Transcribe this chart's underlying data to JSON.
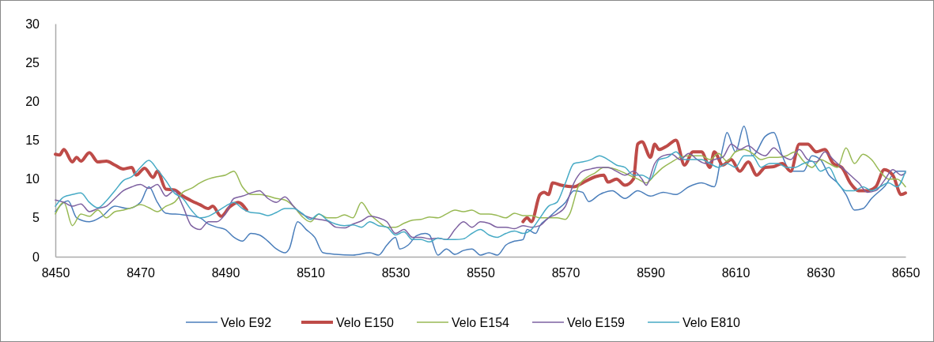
{
  "chart_data": {
    "type": "line",
    "xlim": [
      8450,
      8650
    ],
    "xticks": [
      8450,
      8470,
      8490,
      8510,
      8530,
      8550,
      8570,
      8590,
      8610,
      8630,
      8650
    ],
    "ylim": [
      0,
      30
    ],
    "yticks": [
      0,
      5,
      10,
      15,
      20,
      25,
      30
    ],
    "grid": false,
    "legend": "bottom",
    "line_style": "solid",
    "marker": "none",
    "series": [
      {
        "name": "Velo E92",
        "color": "#4a7ebb",
        "x": [
          8450,
          8453,
          8455,
          8458,
          8461,
          8464,
          8467,
          8470,
          8472,
          8474,
          8476,
          8480,
          8484,
          8486,
          8488,
          8490,
          8492,
          8494,
          8496,
          8498,
          8500,
          8502,
          8504,
          8505,
          8507,
          8509,
          8511,
          8513,
          8516,
          8520,
          8524,
          8526,
          8528,
          8530,
          8531,
          8533,
          8535,
          8537,
          8538,
          8540,
          8542,
          8544,
          8546,
          8548,
          8550,
          8552,
          8554,
          8556,
          8558,
          8560,
          8561,
          8563,
          8564,
          8566,
          8568,
          8570,
          8572,
          8574,
          8575.5,
          8578,
          8581,
          8584,
          8587,
          8590,
          8593,
          8596,
          8599,
          8602,
          8605,
          8607,
          8608,
          8610,
          8612,
          8614,
          8617,
          8619,
          8621,
          8623,
          8626,
          8628,
          8630,
          8632,
          8634,
          8636,
          8638,
          8640,
          8642,
          8645,
          8648,
          8650
        ],
        "values": [
          5.8,
          7.2,
          5.0,
          4.5,
          5.2,
          6.5,
          6.2,
          7.0,
          9.0,
          7.0,
          5.6,
          5.4,
          5.0,
          4.2,
          3.8,
          3.5,
          2.5,
          2.0,
          3.0,
          2.8,
          2.0,
          1.0,
          0.5,
          1.0,
          4.5,
          3.5,
          2.5,
          0.5,
          0.3,
          0.2,
          0.5,
          0.2,
          1.5,
          2.5,
          1.0,
          1.5,
          2.7,
          3.0,
          2.8,
          0.2,
          1.0,
          0.3,
          0.8,
          1.0,
          0.2,
          0.5,
          0.2,
          1.5,
          2.0,
          2.2,
          3.5,
          3.0,
          4.0,
          5.0,
          6.0,
          7.0,
          8.5,
          8.3,
          7.1,
          8.0,
          8.5,
          7.5,
          8.5,
          7.8,
          8.3,
          8.0,
          9.0,
          9.5,
          9.0,
          14.0,
          16.0,
          13.5,
          16.8,
          13.0,
          15.5,
          16.0,
          13.0,
          11.0,
          11.0,
          13.0,
          12.5,
          10.5,
          9.5,
          8.0,
          6.0,
          6.2,
          7.5,
          9.0,
          11.0,
          11.0
        ]
      },
      {
        "name": "Velo E150",
        "color": "#be4b48",
        "x": [
          8450,
          8451,
          8452,
          8454,
          8455,
          8456,
          8458,
          8460,
          8462,
          8464,
          8466,
          8468,
          8469,
          8471,
          8473,
          8474,
          8476,
          8478,
          8480,
          8482,
          8484,
          8486,
          8487,
          8489,
          8491,
          8493,
          8495,
          8527,
          8560,
          8561,
          8562,
          8564,
          8565,
          8566,
          8567,
          8569,
          8572,
          8574,
          8577,
          8579,
          8580,
          8582,
          8584,
          8586,
          8587,
          8588,
          8590,
          8591,
          8592,
          8594,
          8596,
          8598,
          8600,
          8602,
          8604,
          8605,
          8607,
          8609,
          8611,
          8613,
          8615,
          8617,
          8619,
          8621,
          8623,
          8625,
          8627,
          8629,
          8631,
          8633,
          8635,
          8637,
          8639,
          8641,
          8643,
          8645,
          8647,
          8649,
          8650
        ],
        "values": [
          13.2,
          13.1,
          13.8,
          12.2,
          12.8,
          12.3,
          13.4,
          12.2,
          12.3,
          11.8,
          11.3,
          11.5,
          10.5,
          11.4,
          10.2,
          11.0,
          8.7,
          8.6,
          7.8,
          7.2,
          6.7,
          6.2,
          6.5,
          5.2,
          6.4,
          7.0,
          6.0,
          null,
          4.5,
          5.0,
          4.5,
          8.0,
          8.3,
          8.0,
          9.5,
          9.2,
          9.0,
          9.5,
          10.3,
          10.5,
          9.6,
          10.0,
          9.2,
          10.0,
          14.5,
          14.8,
          12.8,
          14.5,
          13.8,
          14.3,
          15.0,
          11.8,
          13.5,
          13.5,
          11.5,
          13.5,
          11.8,
          12.5,
          11.0,
          12.2,
          10.5,
          11.5,
          11.6,
          12.0,
          11.0,
          14.5,
          14.5,
          13.5,
          13.8,
          12.0,
          11.5,
          9.5,
          8.5,
          8.5,
          9.0,
          11.2,
          10.5,
          8.0,
          8.2
        ]
      },
      {
        "name": "Velo E154",
        "color": "#98b954",
        "x": [
          8450,
          8452,
          8454,
          8456,
          8458,
          8460,
          8462,
          8464,
          8466,
          8468,
          8470,
          8472,
          8474,
          8476,
          8478,
          8480,
          8482,
          8484,
          8486,
          8488,
          8490,
          8492,
          8494,
          8496,
          8498,
          8500,
          8502,
          8504,
          8506,
          8508,
          8510,
          8512,
          8514,
          8516,
          8518,
          8520,
          8522,
          8524,
          8526,
          8528,
          8530,
          8532,
          8534,
          8536,
          8538,
          8540,
          8542,
          8544,
          8546,
          8548,
          8550,
          8552,
          8554,
          8556,
          8558,
          8560,
          8562,
          8564,
          8566,
          8568,
          8570,
          8571,
          8573,
          8575,
          8577,
          8579,
          8581,
          8583,
          8585,
          8587,
          8589,
          8591,
          8593,
          8595,
          8597,
          8599,
          8602,
          8604,
          8606,
          8608,
          8610,
          8612,
          8614,
          8616,
          8618,
          8620,
          8622,
          8624,
          8626,
          8628,
          8630,
          8632,
          8634,
          8636,
          8638,
          8640,
          8642,
          8644,
          8646,
          8648,
          8650
        ],
        "values": [
          5.5,
          7.0,
          4.0,
          5.5,
          5.2,
          6.0,
          5.0,
          5.8,
          6.0,
          6.3,
          6.7,
          6.3,
          5.8,
          6.5,
          7.0,
          8.3,
          8.8,
          9.5,
          10.0,
          10.3,
          10.5,
          11.0,
          9.0,
          8.0,
          8.0,
          7.8,
          7.5,
          7.3,
          6.5,
          5.2,
          4.5,
          5.5,
          5.0,
          5.0,
          5.4,
          5.0,
          7.0,
          5.5,
          4.5,
          3.8,
          3.8,
          4.3,
          4.7,
          4.8,
          5.1,
          5.0,
          5.5,
          6.0,
          5.8,
          6.0,
          5.5,
          5.5,
          5.3,
          5.0,
          5.6,
          5.3,
          5.3,
          5.0,
          5.0,
          5.0,
          4.8,
          5.5,
          9.0,
          10.2,
          10.8,
          11.5,
          11.4,
          11.0,
          10.5,
          10.0,
          9.5,
          10.5,
          11.5,
          12.2,
          12.8,
          13.0,
          13.0,
          12.5,
          13.3,
          12.3,
          13.5,
          13.8,
          13.3,
          12.5,
          12.8,
          12.8,
          13.0,
          13.5,
          12.3,
          11.5,
          12.5,
          12.0,
          11.5,
          14.0,
          12.0,
          13.2,
          12.5,
          11.0,
          10.0,
          10.0,
          9.0
        ]
      },
      {
        "name": "Velo E159",
        "color": "#7d60a0",
        "x": [
          8450,
          8452,
          8454,
          8456,
          8458,
          8460,
          8462,
          8464,
          8466,
          8468,
          8470,
          8472,
          8474,
          8476,
          8478,
          8480,
          8482,
          8484,
          8486,
          8488,
          8490,
          8492,
          8494,
          8496,
          8498,
          8500,
          8502,
          8504,
          8506,
          8508,
          8510,
          8512,
          8514,
          8516,
          8518,
          8520,
          8522,
          8524,
          8526,
          8528,
          8530,
          8532,
          8534,
          8536,
          8538,
          8540,
          8542,
          8544,
          8546,
          8548,
          8550,
          8552,
          8554,
          8556,
          8558,
          8560,
          8562,
          8564,
          8566,
          8568,
          8570,
          8572,
          8574,
          8576,
          8578,
          8580,
          8582,
          8584,
          8586,
          8588,
          8589,
          8591,
          8593,
          8595,
          8597,
          8599,
          8601,
          8603,
          8605,
          8607,
          8609,
          8611,
          8613,
          8615,
          8617,
          8619,
          8621,
          8623,
          8625,
          8627,
          8629,
          8631,
          8633,
          8635,
          8637,
          8639,
          8641,
          8643,
          8645,
          8647,
          8649,
          8650
        ],
        "values": [
          7.3,
          7.0,
          6.5,
          6.8,
          5.8,
          6.2,
          6.5,
          7.5,
          8.5,
          9.0,
          9.3,
          8.8,
          9.3,
          7.8,
          8.5,
          6.5,
          4.0,
          3.5,
          4.5,
          4.5,
          5.5,
          7.5,
          7.8,
          8.2,
          8.5,
          7.5,
          7.0,
          7.7,
          6.5,
          5.5,
          5.0,
          4.8,
          4.6,
          3.8,
          3.7,
          4.2,
          4.6,
          5.2,
          5.0,
          4.5,
          3.0,
          3.5,
          2.5,
          2.5,
          2.3,
          2.4,
          2.2,
          3.5,
          4.5,
          3.8,
          4.5,
          4.3,
          3.8,
          3.8,
          3.6,
          4.0,
          3.8,
          4.0,
          5.0,
          5.5,
          6.5,
          9.5,
          11.0,
          11.3,
          11.5,
          11.5,
          11.0,
          10.5,
          11.0,
          10.0,
          9.2,
          12.0,
          13.0,
          13.2,
          12.5,
          13.3,
          12.5,
          12.0,
          12.5,
          12.8,
          14.5,
          13.8,
          14.3,
          13.5,
          13.0,
          14.0,
          13.0,
          12.5,
          13.8,
          12.5,
          12.2,
          13.5,
          12.5,
          11.5,
          10.5,
          9.5,
          8.3,
          8.5,
          9.8,
          11.2,
          10.5,
          10.8
        ]
      },
      {
        "name": "Velo E810",
        "color": "#46aac5",
        "x": [
          8450,
          8452,
          8454,
          8456,
          8458,
          8460,
          8462,
          8464,
          8466,
          8468,
          8470,
          8472,
          8474,
          8476,
          8478,
          8480,
          8482,
          8484,
          8486,
          8488,
          8490,
          8492,
          8494,
          8496,
          8498,
          8500,
          8502,
          8504,
          8506,
          8508,
          8510,
          8512,
          8514,
          8516,
          8518,
          8520,
          8522,
          8524,
          8526,
          8528,
          8530,
          8532,
          8534,
          8536,
          8538,
          8540,
          8542,
          8544,
          8546,
          8548,
          8550,
          8552,
          8554,
          8556,
          8558,
          8560,
          8562,
          8564,
          8566,
          8568,
          8570,
          8572,
          8574,
          8576,
          8578,
          8580,
          8582,
          8584,
          8586,
          8588,
          8590,
          8592,
          8594,
          8596,
          8598,
          8600,
          8602,
          8604,
          8606,
          8608,
          8610,
          8612,
          8614,
          8616,
          8618,
          8620,
          8622,
          8624,
          8626,
          8628,
          8630,
          8632,
          8634,
          8636,
          8638,
          8640,
          8642,
          8644,
          8646,
          8648,
          8650
        ],
        "values": [
          6.5,
          7.7,
          8.0,
          8.2,
          7.0,
          6.3,
          7.2,
          8.5,
          9.8,
          10.3,
          11.5,
          12.4,
          11.2,
          9.8,
          8.2,
          7.5,
          6.0,
          5.0,
          5.2,
          5.8,
          6.5,
          7.0,
          6.2,
          5.7,
          5.6,
          5.3,
          5.7,
          6.2,
          6.2,
          5.6,
          4.8,
          5.5,
          4.7,
          4.2,
          4.0,
          4.1,
          3.8,
          4.5,
          4.0,
          3.8,
          2.8,
          3.2,
          2.2,
          2.2,
          1.9,
          2.4,
          2.2,
          2.2,
          2.3,
          3.0,
          3.5,
          2.8,
          2.5,
          3.0,
          3.3,
          3.0,
          3.5,
          5.0,
          6.5,
          7.0,
          9.5,
          12.0,
          12.2,
          12.5,
          13.0,
          12.5,
          11.8,
          11.5,
          10.5,
          10.5,
          10.0,
          12.5,
          12.8,
          13.5,
          12.5,
          12.5,
          12.5,
          12.0,
          11.5,
          12.0,
          11.5,
          13.0,
          13.0,
          11.5,
          12.0,
          12.0,
          11.5,
          11.5,
          12.0,
          12.3,
          11.0,
          11.5,
          9.5,
          8.5,
          8.5,
          9.0,
          8.5,
          9.0,
          9.5,
          9.0,
          11.0
        ]
      }
    ]
  }
}
